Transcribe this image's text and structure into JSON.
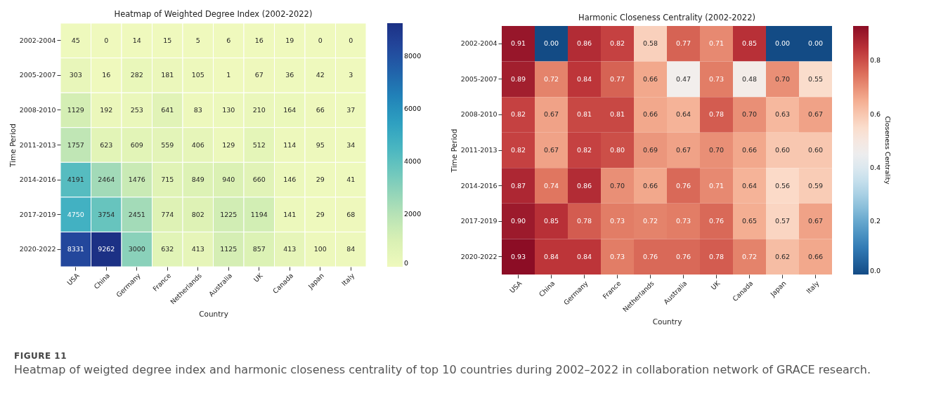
{
  "chart_data": [
    {
      "type": "heatmap",
      "title": "Heatmap of Weighted Degree Index (2002-2022)",
      "xlabel": "Country",
      "ylabel": "Time Period",
      "categories": [
        "USA",
        "China",
        "Germany",
        "France",
        "Netherlands",
        "Australia",
        "UK",
        "Canada",
        "Japan",
        "Italy"
      ],
      "y_categories": [
        "2002-2004",
        "2005-2007",
        "2008-2010",
        "2011-2013",
        "2014-2016",
        "2017-2019",
        "2020-2022"
      ],
      "cells": [
        [
          45,
          0,
          14,
          15,
          5,
          6,
          16,
          19,
          0,
          0
        ],
        [
          303,
          16,
          282,
          181,
          105,
          1,
          67,
          36,
          42,
          3
        ],
        [
          1129,
          192,
          253,
          641,
          83,
          130,
          210,
          164,
          66,
          37
        ],
        [
          1757,
          623,
          609,
          559,
          406,
          129,
          512,
          114,
          95,
          34
        ],
        [
          4191,
          2464,
          1476,
          715,
          849,
          940,
          660,
          146,
          29,
          41
        ],
        [
          4750,
          3754,
          2451,
          774,
          802,
          1225,
          1194,
          141,
          29,
          68
        ],
        [
          8331,
          9262,
          3000,
          632,
          413,
          1125,
          857,
          413,
          100,
          84
        ]
      ],
      "clim": [
        0,
        9262
      ],
      "cticks": [
        0,
        2000,
        4000,
        6000,
        8000
      ],
      "data_labels": true,
      "annotations": [
        "FIGURE 11",
        "Heatmap of weigted degree index and harmonic closeness centrality of top 10 countries during 2002–2022 in collaboration network of GRACE research."
      ]
    },
    {
      "type": "heatmap",
      "title": "Harmonic Closeness Centrality (2002-2022)",
      "xlabel": "Country",
      "ylabel": "Time Period",
      "clabel": "Closeness Centrality",
      "categories": [
        "USA",
        "China",
        "Germany",
        "France",
        "Netherlands",
        "Australia",
        "UK",
        "Canada",
        "Japan",
        "Italy"
      ],
      "y_categories": [
        "2002-2004",
        "2005-2007",
        "2008-2010",
        "2011-2013",
        "2014-2016",
        "2017-2019",
        "2020-2022"
      ],
      "cells": [
        [
          0.91,
          0.0,
          0.86,
          0.82,
          0.58,
          0.77,
          0.71,
          0.85,
          0.0,
          0.0
        ],
        [
          0.89,
          0.72,
          0.84,
          0.77,
          0.66,
          0.47,
          0.73,
          0.48,
          0.7,
          0.55
        ],
        [
          0.82,
          0.67,
          0.81,
          0.81,
          0.66,
          0.64,
          0.78,
          0.7,
          0.63,
          0.67
        ],
        [
          0.82,
          0.67,
          0.82,
          0.8,
          0.69,
          0.67,
          0.7,
          0.66,
          0.6,
          0.6
        ],
        [
          0.87,
          0.74,
          0.86,
          0.7,
          0.66,
          0.76,
          0.71,
          0.64,
          0.56,
          0.59
        ],
        [
          0.9,
          0.85,
          0.78,
          0.73,
          0.72,
          0.73,
          0.76,
          0.65,
          0.57,
          0.67
        ],
        [
          0.93,
          0.84,
          0.84,
          0.73,
          0.76,
          0.76,
          0.78,
          0.72,
          0.62,
          0.66
        ]
      ],
      "cell_labels": [
        [
          "0.91",
          "0.00",
          "0.86",
          "0.82",
          "0.58",
          "0.77",
          "0.71",
          "0.85",
          "0.00",
          "0.00"
        ],
        [
          "0.89",
          "0.72",
          "0.84",
          "0.77",
          "0.66",
          "0.47",
          "0.73",
          "0.48",
          "0.70",
          "0.55"
        ],
        [
          "0.82",
          "0.67",
          "0.81",
          "0.81",
          "0.66",
          "0.64",
          "0.78",
          "0.70",
          "0.63",
          "0.67"
        ],
        [
          "0.82",
          "0.67",
          "0.82",
          "0.80",
          "0.69",
          "0.67",
          "0.70",
          "0.66",
          "0.60",
          "0.60"
        ],
        [
          "0.87",
          "0.74",
          "0.86",
          "0.70",
          "0.66",
          "0.76",
          "0.71",
          "0.64",
          "0.56",
          "0.59"
        ],
        [
          "0.90",
          "0.85",
          "0.78",
          "0.73",
          "0.72",
          "0.73",
          "0.76",
          "0.65",
          "0.57",
          "0.67"
        ],
        [
          "0.93",
          "0.84",
          "0.84",
          "0.73",
          "0.76",
          "0.76",
          "0.78",
          "0.72",
          "0.62",
          "0.66"
        ]
      ],
      "clim": [
        0,
        0.93
      ],
      "cticks": [
        {
          "value": 0,
          "label": "0.0"
        },
        {
          "value": 0.2,
          "label": "0.2"
        },
        {
          "value": 0.4,
          "label": "0.4"
        },
        {
          "value": 0.6,
          "label": "0.6"
        },
        {
          "value": 0.8,
          "label": "0.8"
        }
      ],
      "data_labels": true
    }
  ]
}
